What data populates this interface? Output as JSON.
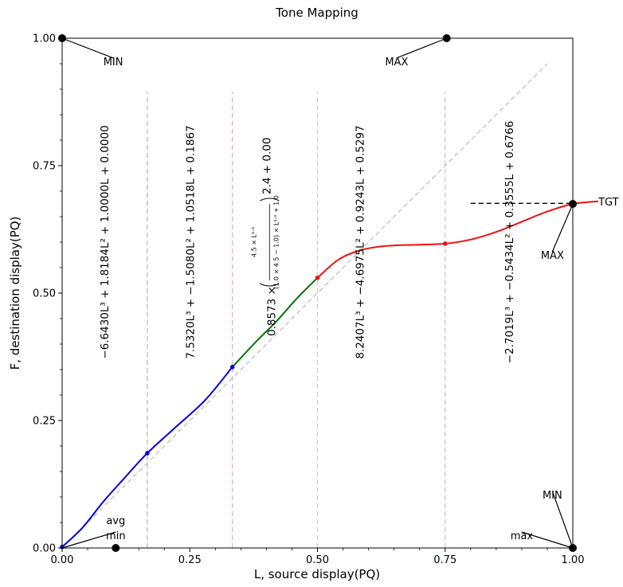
{
  "chart_data": {
    "type": "line",
    "title": "Tone Mapping",
    "xlabel": "L, source display(PQ)",
    "ylabel": "F, destination display(PQ)",
    "xlim": [
      0,
      1
    ],
    "ylim": [
      0,
      1
    ],
    "x_ticks": [
      "0.00",
      "0.25",
      "0.50",
      "0.75",
      "1.00"
    ],
    "y_ticks": [
      "0.00",
      "0.25",
      "0.50",
      "0.75",
      "1.00"
    ],
    "grid": false,
    "segments": [
      {
        "color": "#0000dd",
        "points": [
          [
            0.0,
            0.002
          ],
          [
            0.04,
            0.04
          ],
          [
            0.08,
            0.09
          ],
          [
            0.12,
            0.135
          ],
          [
            0.1667,
            0.186
          ],
          [
            0.22,
            0.235
          ],
          [
            0.28,
            0.29
          ],
          [
            0.3333,
            0.355
          ]
        ]
      },
      {
        "color": "#007700",
        "points": [
          [
            0.3333,
            0.355
          ],
          [
            0.38,
            0.405
          ],
          [
            0.42,
            0.445
          ],
          [
            0.46,
            0.49
          ],
          [
            0.5,
            0.53
          ]
        ]
      },
      {
        "color": "#ee1111",
        "points": [
          [
            0.5,
            0.53
          ],
          [
            0.54,
            0.565
          ],
          [
            0.58,
            0.583
          ],
          [
            0.62,
            0.591
          ],
          [
            0.66,
            0.594
          ],
          [
            0.7,
            0.595
          ],
          [
            0.75,
            0.597
          ],
          [
            0.8,
            0.605
          ],
          [
            0.85,
            0.62
          ],
          [
            0.9,
            0.64
          ],
          [
            0.95,
            0.66
          ],
          [
            1.0,
            0.675
          ],
          [
            1.05,
            0.68
          ]
        ]
      }
    ],
    "knots": [
      {
        "x": 0.0,
        "y": 0.002,
        "color": "#0000dd"
      },
      {
        "x": 0.1667,
        "y": 0.186,
        "color": "#0000dd"
      },
      {
        "x": 0.3333,
        "y": 0.355,
        "color": "#0000dd"
      },
      {
        "x": 0.5,
        "y": 0.53,
        "color": "#ee1111"
      },
      {
        "x": 0.75,
        "y": 0.597,
        "color": "#ee1111"
      },
      {
        "x": 1.0,
        "y": 0.675,
        "color": "#000000"
      }
    ],
    "reference_diagonal": {
      "from": [
        0.04,
        0.04
      ],
      "to": [
        0.95,
        0.95
      ],
      "color": "#bbbbbb"
    },
    "vertical_guides": [
      {
        "x": 0.1667,
        "y_range": [
          0.0,
          0.895
        ],
        "color": "#b0b0e8"
      },
      {
        "x": 0.3333,
        "y_range": [
          0.0,
          0.895
        ],
        "color": "#d0b0d8"
      },
      {
        "x": 0.5,
        "y_range": [
          0.0,
          0.895
        ],
        "color": "#e0c0b8"
      },
      {
        "x": 0.75,
        "y_range": [
          0.0,
          0.895
        ],
        "color": "#f0b0c0"
      }
    ],
    "target_line": {
      "from": [
        0.8,
        0.676
      ],
      "to": [
        1.0,
        0.676
      ]
    },
    "big_markers": [
      {
        "x": 0.0,
        "y": 1.0
      },
      {
        "x": 0.753,
        "y": 1.0
      },
      {
        "x": 0.105,
        "y": 0.0
      },
      {
        "x": 1.0,
        "y": 0.0
      },
      {
        "x": 1.0,
        "y": 0.675
      }
    ],
    "annotations": [
      {
        "text": "MIN",
        "x": 0.1,
        "y": 0.955,
        "ax": 0.0,
        "ay": 1.0
      },
      {
        "text": "MAX",
        "x": 0.655,
        "y": 0.955,
        "ax": 0.753,
        "ay": 1.0
      },
      {
        "text": "avg",
        "x": 0.105,
        "y": 0.055,
        "ax": null,
        "ay": null
      },
      {
        "text": "min",
        "x": 0.105,
        "y": 0.025,
        "ax": 0.0,
        "ay": 0.0
      },
      {
        "text": "MIN",
        "x": 0.96,
        "y": 0.105,
        "ax": 1.0,
        "ay": 0.0
      },
      {
        "text": "max",
        "x": 0.9,
        "y": 0.025,
        "ax": 1.0,
        "ay": 0.0
      },
      {
        "text": "MAX",
        "x": 0.96,
        "y": 0.575,
        "ax": 1.0,
        "ay": 0.675
      },
      {
        "text": "TGT",
        "x": 1.07,
        "y": 0.68,
        "ax": null,
        "ay": null
      }
    ],
    "segment_formulas": [
      {
        "x": 0.083,
        "y": 0.6,
        "text": "−6.6430L³ + 1.8184L² + 1.0000L + 0.0000"
      },
      {
        "x": 0.25,
        "y": 0.6,
        "text": "7.5320L³ + −1.5080L² + 1.0518L + 0.1867"
      },
      {
        "x": 0.583,
        "y": 0.6,
        "text": "8.2407L³ + −4.6975L² + 0.9243L + 0.5297"
      },
      {
        "x": 0.875,
        "y": 0.6,
        "text": "−2.7019L³ + −0.5434L² + 0.3555L + 0.6766"
      }
    ],
    "middle_formula": {
      "x": 0.417,
      "y": 0.6,
      "prefix": "0.8573 ×",
      "numerator": "4.5 × L¹·⁰",
      "denominator": "(1.0 × 4.5 − 1.0) × L¹·⁰ + 1.0",
      "suffix": "2.4 + 0.00"
    }
  }
}
